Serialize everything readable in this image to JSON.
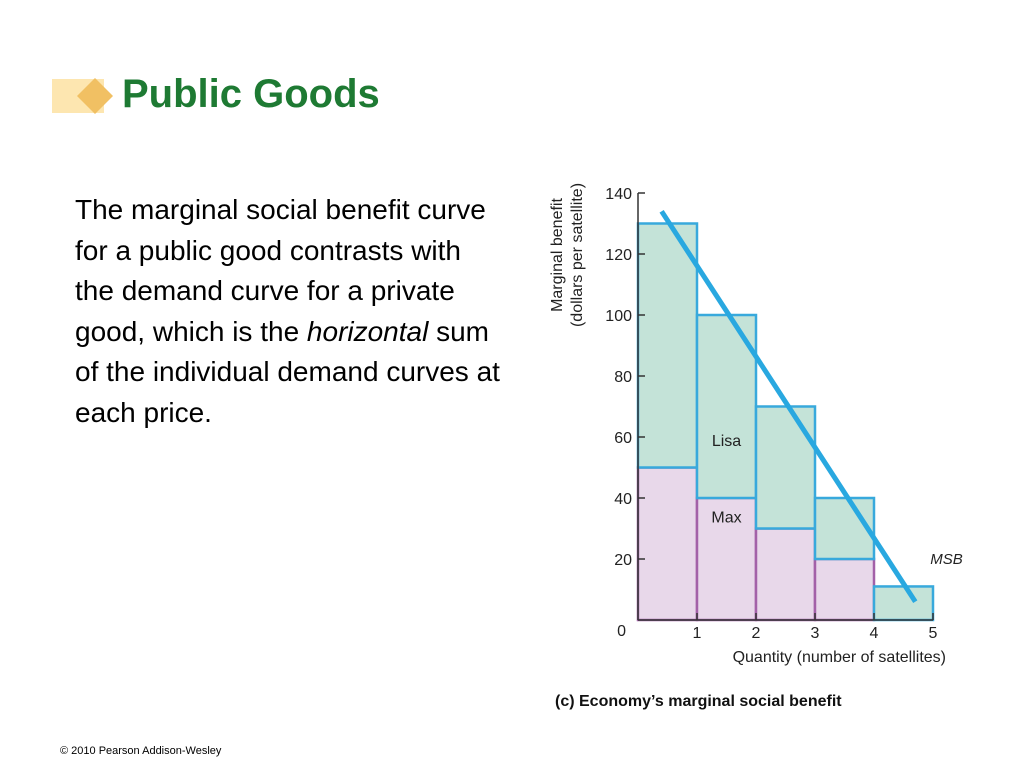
{
  "slide": {
    "title": "Public Goods",
    "body_before": "The marginal social benefit curve for a public good contrasts with the demand curve for a private good, which is the ",
    "body_em": "horizontal",
    "body_after": " sum of the individual demand curves at each price.",
    "footer": "© 2010 Pearson Addison-Wesley"
  },
  "colors": {
    "title": "#1e7a33",
    "lisa_fill": "#c4e3d8",
    "lisa_stroke": "#38a9dc",
    "max_fill": "#e8d8ea",
    "max_stroke": "#a361a8",
    "msb_line": "#29a8e0",
    "axis": "#333333"
  },
  "chart_data": {
    "type": "bar",
    "caption": "(c) Economy’s marginal social benefit",
    "ylabel_line1": "Marginal benefit",
    "ylabel_line2": "(dollars per satellite)",
    "xlabel": "Quantity (number of satellites)",
    "xlim": [
      0,
      5
    ],
    "ylim": [
      0,
      140
    ],
    "xticks": [
      1,
      2,
      3,
      4,
      5
    ],
    "yticks": [
      0,
      20,
      40,
      60,
      80,
      100,
      120,
      140
    ],
    "origin_label": "0",
    "categories": [
      "1",
      "2",
      "3",
      "4",
      "5"
    ],
    "stacked": true,
    "series": [
      {
        "name": "Max",
        "values": [
          50,
          40,
          30,
          20,
          0
        ]
      },
      {
        "name": "Lisa",
        "values": [
          80,
          60,
          40,
          20,
          11
        ]
      }
    ],
    "series_label_anchor": [
      {
        "name": "Max",
        "x": 1.5,
        "y": 32
      },
      {
        "name": "Lisa",
        "x": 1.5,
        "y": 57
      }
    ],
    "line": {
      "name": "MSB",
      "x": [
        0.4,
        4.7
      ],
      "y": [
        134,
        6
      ]
    },
    "line_label": {
      "text": "MSB",
      "x": 4.75,
      "y": 20
    }
  }
}
